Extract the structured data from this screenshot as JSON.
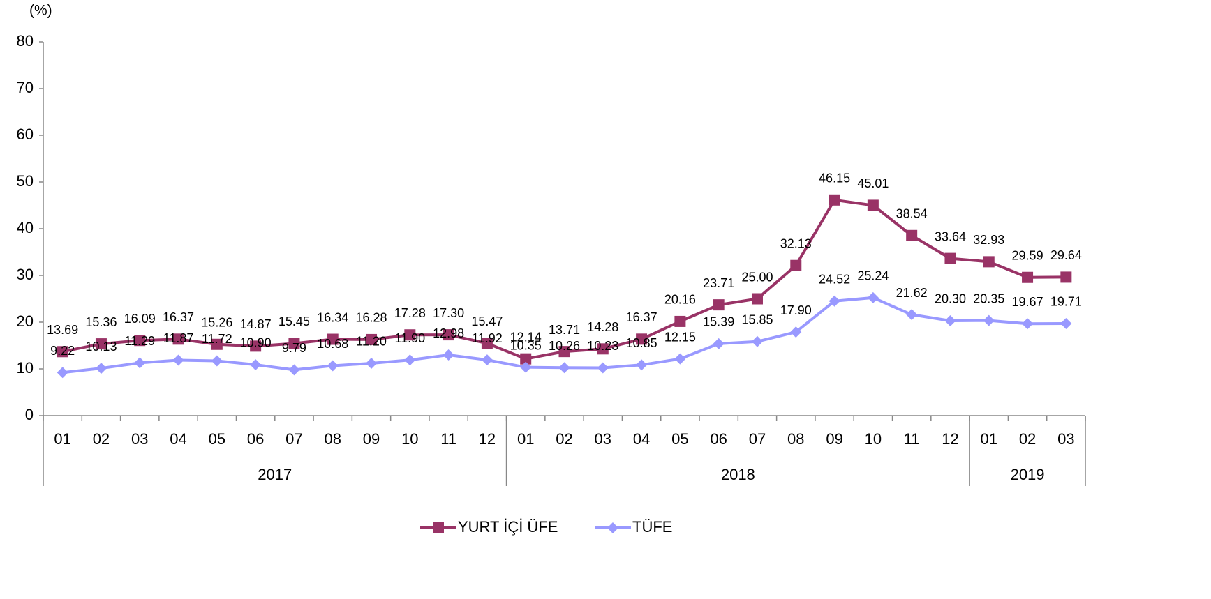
{
  "chart_data": {
    "type": "line",
    "y_label": "(%)",
    "categories": [
      "01",
      "02",
      "03",
      "04",
      "05",
      "06",
      "07",
      "08",
      "09",
      "10",
      "11",
      "12",
      "01",
      "02",
      "03",
      "04",
      "05",
      "06",
      "07",
      "08",
      "09",
      "10",
      "11",
      "12",
      "01",
      "02",
      "03"
    ],
    "year_groups": [
      {
        "label": "2017",
        "span": 12
      },
      {
        "label": "2018",
        "span": 12
      },
      {
        "label": "2019",
        "span": 3
      }
    ],
    "series": [
      {
        "name": "YURT İÇİ ÜFE",
        "color": "#993366",
        "marker": "square",
        "values": [
          13.69,
          15.36,
          16.09,
          16.37,
          15.26,
          14.87,
          15.45,
          16.34,
          16.28,
          17.28,
          17.3,
          15.47,
          12.14,
          13.71,
          14.28,
          16.37,
          20.16,
          23.71,
          25.0,
          32.13,
          46.15,
          45.01,
          38.54,
          33.64,
          32.93,
          29.59,
          29.64
        ],
        "value_labels": [
          "13.69",
          "15.36",
          "16.09",
          "16.37",
          "15.26",
          "14.87",
          "15.45",
          "16.34",
          "16.28",
          "17.28",
          "17.30",
          "15.47",
          "12.14",
          "13.71",
          "14.28",
          "16.37",
          "20.16",
          "23.71",
          "25.00",
          "32.13",
          "46.15",
          "45.01",
          "38.54",
          "33.64",
          "32.93",
          "29.59",
          "29.64"
        ]
      },
      {
        "name": "TÜFE",
        "color": "#9999ff",
        "marker": "diamond",
        "values": [
          9.22,
          10.13,
          11.29,
          11.87,
          11.72,
          10.9,
          9.79,
          10.68,
          11.2,
          11.9,
          12.98,
          11.92,
          10.35,
          10.26,
          10.23,
          10.85,
          12.15,
          15.39,
          15.85,
          17.9,
          24.52,
          25.24,
          21.62,
          20.3,
          20.35,
          19.67,
          19.71
        ],
        "value_labels": [
          "9.22",
          "10.13",
          "11.29",
          "11.87",
          "11.72",
          "10.90",
          "9.79",
          "10.68",
          "11.20",
          "11.90",
          "12.98",
          "11.92",
          "10.35",
          "10.26",
          "10.23",
          "10.85",
          "12.15",
          "15.39",
          "15.85",
          "17.90",
          "24.52",
          "25.24",
          "21.62",
          "20.30",
          "20.35",
          "19.67",
          "19.71"
        ]
      }
    ],
    "ylim": [
      0,
      80
    ],
    "yticks": [
      0,
      10,
      20,
      30,
      40,
      50,
      60,
      70,
      80
    ],
    "grid": false,
    "legend": "bottom"
  }
}
